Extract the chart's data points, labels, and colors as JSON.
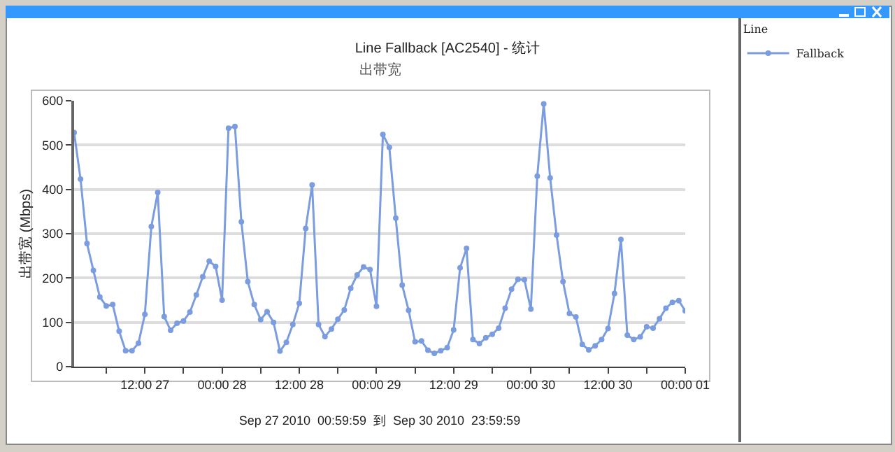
{
  "chart_data": {
    "type": "line",
    "title": "Line Fallback [AC2540] - 统计",
    "subtitle": "出带宽",
    "ylabel": "出带宽 (Mbps)",
    "xlabel": "Sep 27 2010  00:59:59  到  Sep 30 2010  23:59:59",
    "legend_title": "Line",
    "legend": "right",
    "grid": "y",
    "marker": "circle",
    "line_style": "solid",
    "x": [
      "2010-09-27T01:00",
      "2010-09-27T02:00",
      "2010-09-27T03:00",
      "2010-09-27T04:00",
      "2010-09-27T05:00",
      "2010-09-27T06:00",
      "2010-09-27T07:00",
      "2010-09-27T08:00",
      "2010-09-27T09:00",
      "2010-09-27T10:00",
      "2010-09-27T11:00",
      "2010-09-27T12:00",
      "2010-09-27T13:00",
      "2010-09-27T14:00",
      "2010-09-27T15:00",
      "2010-09-27T16:00",
      "2010-09-27T17:00",
      "2010-09-27T18:00",
      "2010-09-27T19:00",
      "2010-09-27T20:00",
      "2010-09-27T21:00",
      "2010-09-27T22:00",
      "2010-09-27T23:00",
      "2010-09-28T00:00",
      "2010-09-28T01:00",
      "2010-09-28T02:00",
      "2010-09-28T03:00",
      "2010-09-28T04:00",
      "2010-09-28T05:00",
      "2010-09-28T06:00",
      "2010-09-28T07:00",
      "2010-09-28T08:00",
      "2010-09-28T09:00",
      "2010-09-28T10:00",
      "2010-09-28T11:00",
      "2010-09-28T12:00",
      "2010-09-28T13:00",
      "2010-09-28T14:00",
      "2010-09-28T15:00",
      "2010-09-28T16:00",
      "2010-09-28T17:00",
      "2010-09-28T18:00",
      "2010-09-28T19:00",
      "2010-09-28T20:00",
      "2010-09-28T21:00",
      "2010-09-28T22:00",
      "2010-09-28T23:00",
      "2010-09-29T00:00",
      "2010-09-29T01:00",
      "2010-09-29T02:00",
      "2010-09-29T03:00",
      "2010-09-29T04:00",
      "2010-09-29T05:00",
      "2010-09-29T06:00",
      "2010-09-29T07:00",
      "2010-09-29T08:00",
      "2010-09-29T09:00",
      "2010-09-29T10:00",
      "2010-09-29T11:00",
      "2010-09-29T12:00",
      "2010-09-29T13:00",
      "2010-09-29T14:00",
      "2010-09-29T15:00",
      "2010-09-29T16:00",
      "2010-09-29T17:00",
      "2010-09-29T18:00",
      "2010-09-29T19:00",
      "2010-09-29T20:00",
      "2010-09-29T21:00",
      "2010-09-29T22:00",
      "2010-09-29T23:00",
      "2010-09-30T00:00",
      "2010-09-30T01:00",
      "2010-09-30T02:00",
      "2010-09-30T03:00",
      "2010-09-30T04:00",
      "2010-09-30T05:00",
      "2010-09-30T06:00",
      "2010-09-30T07:00",
      "2010-09-30T08:00",
      "2010-09-30T09:00",
      "2010-09-30T10:00",
      "2010-09-30T11:00",
      "2010-09-30T12:00",
      "2010-09-30T13:00",
      "2010-09-30T14:00",
      "2010-09-30T15:00",
      "2010-09-30T16:00",
      "2010-09-30T17:00",
      "2010-09-30T18:00",
      "2010-09-30T19:00",
      "2010-09-30T20:00",
      "2010-09-30T21:00",
      "2010-09-30T22:00",
      "2010-09-30T23:00",
      "2010-10-01T00:00"
    ],
    "series": [
      {
        "name": "Fallback",
        "color": "#7b9de0",
        "values": [
          528,
          423,
          278,
          217,
          157,
          137,
          140,
          80,
          36,
          36,
          53,
          118,
          316,
          393,
          113,
          82,
          98,
          103,
          123,
          162,
          203,
          238,
          226,
          150,
          538,
          542,
          327,
          192,
          140,
          106,
          124,
          100,
          35,
          55,
          95,
          143,
          312,
          410,
          95,
          68,
          85,
          107,
          128,
          177,
          207,
          225,
          219,
          136,
          524,
          495,
          335,
          184,
          127,
          56,
          58,
          37,
          30,
          36,
          43,
          83,
          223,
          267,
          61,
          52,
          65,
          73,
          87,
          132,
          175,
          197,
          196,
          130,
          430,
          593,
          426,
          297,
          192,
          120,
          112,
          50,
          38,
          47,
          61,
          86,
          165,
          287,
          71,
          61,
          67,
          90,
          87,
          108,
          132,
          145,
          149,
          126
        ]
      }
    ],
    "xlim": [
      "2010-09-27T01:00",
      "2010-10-01T00:00"
    ],
    "xticks": [
      {
        "value": "2010-09-27T06:00",
        "label": null
      },
      {
        "value": "2010-09-27T12:00",
        "label": "12:00 27"
      },
      {
        "value": "2010-09-27T18:00",
        "label": null
      },
      {
        "value": "2010-09-28T00:00",
        "label": "00:00 28"
      },
      {
        "value": "2010-09-28T06:00",
        "label": null
      },
      {
        "value": "2010-09-28T12:00",
        "label": "12:00 28"
      },
      {
        "value": "2010-09-28T18:00",
        "label": null
      },
      {
        "value": "2010-09-29T00:00",
        "label": "00:00 29"
      },
      {
        "value": "2010-09-29T06:00",
        "label": null
      },
      {
        "value": "2010-09-29T12:00",
        "label": "12:00 29"
      },
      {
        "value": "2010-09-29T18:00",
        "label": null
      },
      {
        "value": "2010-09-30T00:00",
        "label": "00:00 30"
      },
      {
        "value": "2010-09-30T06:00",
        "label": null
      },
      {
        "value": "2010-09-30T12:00",
        "label": "12:00 30"
      },
      {
        "value": "2010-09-30T18:00",
        "label": null
      },
      {
        "value": "2010-10-01T00:00",
        "label": "00:00 01"
      }
    ],
    "ylim": [
      0,
      600
    ],
    "yticks": [
      0,
      100,
      200,
      300,
      400,
      500,
      600
    ]
  }
}
